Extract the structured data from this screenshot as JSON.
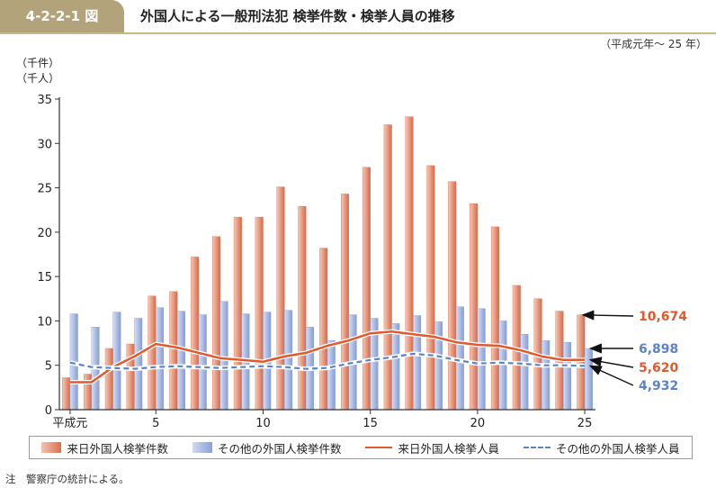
{
  "header": {
    "figure_number": "4-2-2-1 図",
    "title": "外国人による一般刑法犯 検挙件数・検挙人員の推移",
    "period": "（平成元年～ 25 年）"
  },
  "note": "注　警察庁の統計による。",
  "chart_data": {
    "type": "bar",
    "x": [
      1,
      2,
      3,
      4,
      5,
      6,
      7,
      8,
      9,
      10,
      11,
      12,
      13,
      14,
      15,
      16,
      17,
      18,
      19,
      20,
      21,
      22,
      23,
      24,
      25
    ],
    "xticks": [
      {
        "x": 1,
        "label": "平成元"
      },
      {
        "x": 5,
        "label": "5"
      },
      {
        "x": 10,
        "label": "10"
      },
      {
        "x": 15,
        "label": "15"
      },
      {
        "x": 20,
        "label": "20"
      },
      {
        "x": 25,
        "label": "25"
      }
    ],
    "ylim": [
      0,
      35
    ],
    "yticks": [
      0,
      5,
      10,
      15,
      20,
      25,
      30,
      35
    ],
    "yunit_lines": [
      "（千件）",
      "（千人）"
    ],
    "colors": {
      "red_bar": "#e07a56",
      "blue_bar": "#93a8dc",
      "red_line": "#e05a2e",
      "blue_line": "#5b83c9"
    },
    "series": [
      {
        "name": "来日外国人検挙件数",
        "kind": "bar",
        "color": "red",
        "values": [
          3.6,
          4.0,
          6.9,
          7.4,
          12.8,
          13.3,
          17.2,
          19.5,
          21.7,
          21.7,
          25.1,
          22.9,
          18.2,
          24.3,
          27.3,
          32.1,
          33.0,
          27.5,
          25.7,
          23.2,
          20.6,
          14.0,
          12.5,
          11.1,
          10.674
        ]
      },
      {
        "name": "その他の外国人検挙件数",
        "kind": "bar",
        "color": "blue",
        "values": [
          10.8,
          9.3,
          11.0,
          10.3,
          11.5,
          11.1,
          10.7,
          12.2,
          10.8,
          11.0,
          11.2,
          9.3,
          7.8,
          10.7,
          10.3,
          9.7,
          10.6,
          9.9,
          11.6,
          11.4,
          10.0,
          8.5,
          7.8,
          7.6,
          6.898
        ]
      },
      {
        "name": "来日外国人検挙人員",
        "kind": "line",
        "color": "red",
        "values": [
          3.1,
          3.1,
          4.8,
          6.0,
          7.4,
          7.0,
          6.4,
          5.8,
          5.6,
          5.4,
          6.0,
          6.4,
          7.2,
          7.8,
          8.6,
          8.8,
          8.5,
          8.2,
          7.6,
          7.3,
          7.2,
          6.7,
          6.0,
          5.6,
          5.62
        ]
      },
      {
        "name": "その他の外国人検挙人員",
        "kind": "line",
        "color": "blue",
        "dashed": true,
        "values": [
          5.3,
          4.8,
          4.7,
          4.6,
          4.8,
          4.9,
          4.8,
          4.7,
          4.8,
          4.9,
          4.8,
          4.6,
          4.7,
          5.2,
          5.6,
          5.9,
          6.3,
          6.1,
          5.6,
          5.2,
          5.3,
          5.2,
          5.0,
          5.0,
          4.932
        ]
      }
    ],
    "annotations": [
      {
        "label": "10,674",
        "color": "#e05a2e",
        "series": 0
      },
      {
        "label": "6,898",
        "color": "#5b83c9",
        "series": 1
      },
      {
        "label": "5,620",
        "color": "#e05a2e",
        "series": 2
      },
      {
        "label": "4,932",
        "color": "#5b83c9",
        "series": 3
      }
    ]
  },
  "legend": {
    "items": [
      {
        "label": "来日外国人検挙件数"
      },
      {
        "label": "その他の外国人検挙件数"
      },
      {
        "label": "来日外国人検挙人員"
      },
      {
        "label": "その他の外国人検挙人員"
      }
    ]
  }
}
